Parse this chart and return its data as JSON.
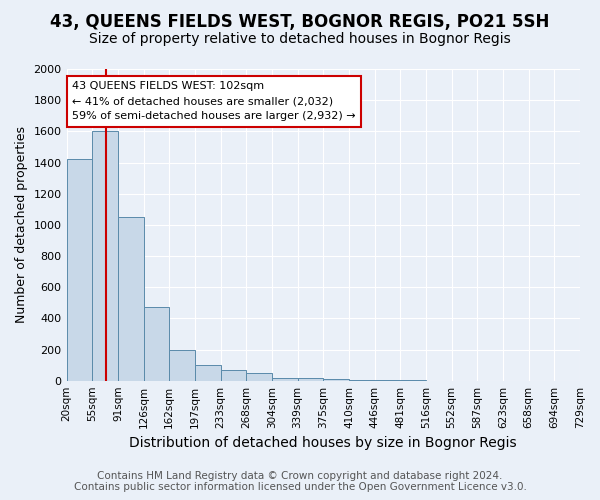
{
  "title1": "43, QUEENS FIELDS WEST, BOGNOR REGIS, PO21 5SH",
  "title2": "Size of property relative to detached houses in Bognor Regis",
  "xlabel": "Distribution of detached houses by size in Bognor Regis",
  "ylabel": "Number of detached properties",
  "footer1": "Contains HM Land Registry data © Crown copyright and database right 2024.",
  "footer2": "Contains public sector information licensed under the Open Government Licence v3.0.",
  "tick_labels": [
    "20sqm",
    "55sqm",
    "91sqm",
    "126sqm",
    "162sqm",
    "197sqm",
    "233sqm",
    "268sqm",
    "304sqm",
    "339sqm",
    "375sqm",
    "410sqm",
    "446sqm",
    "481sqm",
    "516sqm",
    "552sqm",
    "587sqm",
    "623sqm",
    "658sqm",
    "694sqm",
    "729sqm"
  ],
  "bar_heights": [
    1420,
    1600,
    1050,
    470,
    200,
    100,
    70,
    50,
    20,
    20,
    10,
    5,
    3,
    2,
    1,
    1,
    0,
    0,
    0,
    0
  ],
  "bar_color": "#c8d8e8",
  "bar_edge_color": "#5a8aaa",
  "vline_pos": 1.525,
  "vline_color": "#cc0000",
  "annotation_text": "43 QUEENS FIELDS WEST: 102sqm\n← 41% of detached houses are smaller (2,032)\n59% of semi-detached houses are larger (2,932) →",
  "annotation_box_facecolor": "#ffffff",
  "annotation_box_edgecolor": "#cc0000",
  "ylim": [
    0,
    2000
  ],
  "yticks": [
    0,
    200,
    400,
    600,
    800,
    1000,
    1200,
    1400,
    1600,
    1800,
    2000
  ],
  "bg_color": "#eaf0f8",
  "grid_color": "#ffffff",
  "title1_fontsize": 12,
  "title2_fontsize": 10,
  "xlabel_fontsize": 10,
  "ylabel_fontsize": 9,
  "footer_fontsize": 7.5,
  "annotation_fontsize": 8,
  "tick_fontsize": 7.5
}
